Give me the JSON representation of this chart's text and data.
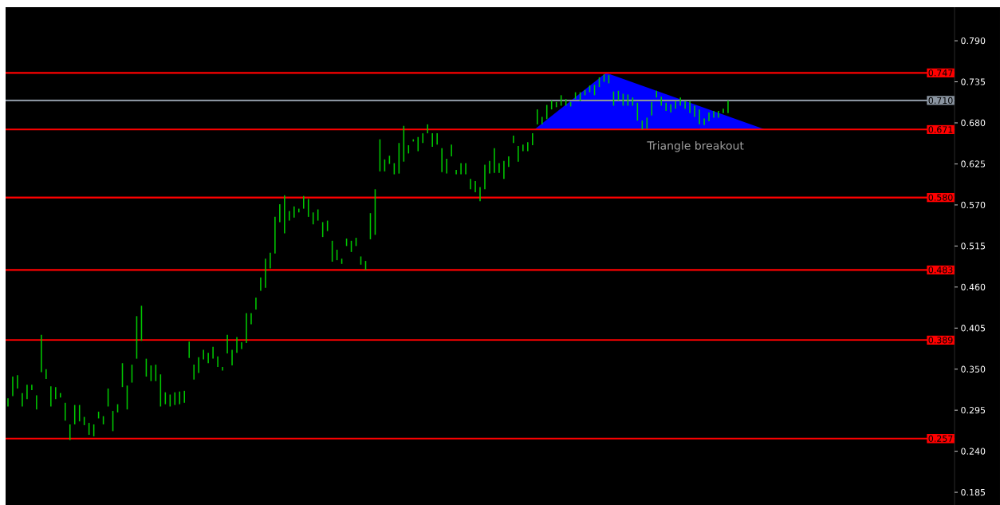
{
  "chart_data": {
    "type": "bar",
    "tick_labels": "y",
    "color": "#00c800",
    "ylim": [
      0.168,
      0.835
    ],
    "yticks": [
      0.185,
      {
        "value": 0.24,
        "label": "0.240"
      },
      0.295,
      {
        "value": 0.35,
        "label": "0.350"
      },
      0.405,
      {
        "value": 0.46,
        "label": "0.460"
      },
      0.515,
      {
        "value": 0.57,
        "label": "0.570"
      },
      0.625,
      {
        "value": 0.68,
        "label": "0.680"
      },
      0.735,
      {
        "value": 0.79,
        "label": "0.790"
      }
    ],
    "categories": [
      null,
      null,
      null,
      null,
      null,
      null,
      null,
      null,
      null,
      null,
      null,
      null,
      null,
      null,
      null,
      null,
      null,
      null,
      null,
      null,
      null,
      null,
      null,
      null,
      null,
      null,
      null,
      null,
      null,
      null,
      null,
      null,
      null,
      null,
      null,
      null,
      null,
      null,
      null,
      null,
      null,
      null,
      null,
      null,
      null,
      null,
      null,
      null,
      null,
      null,
      null,
      null,
      null,
      null,
      null,
      null,
      null,
      null,
      null,
      null,
      null,
      null,
      null,
      null,
      null,
      null,
      null,
      null,
      null,
      null,
      null,
      null,
      null,
      null,
      null,
      null,
      null,
      null,
      null,
      null,
      null,
      null,
      null,
      null,
      null,
      null,
      null,
      null,
      null,
      null,
      null,
      null,
      null,
      null,
      null,
      null,
      null,
      null,
      null,
      null,
      null,
      null,
      null,
      null,
      null,
      null,
      null,
      null,
      null,
      null,
      null,
      null,
      null,
      null,
      null,
      null,
      null,
      null,
      null,
      null,
      null,
      null,
      null,
      null,
      null,
      null,
      null,
      null,
      null,
      null,
      null,
      null,
      null,
      null,
      null,
      null,
      null,
      null,
      null,
      null,
      null,
      null,
      null,
      null,
      null,
      null,
      null,
      null,
      null,
      null,
      null,
      null,
      null,
      null,
      null,
      null,
      null,
      null,
      null,
      null,
      null,
      null,
      null,
      null,
      null,
      null,
      null,
      null,
      null,
      null,
      null,
      null,
      null,
      null,
      null,
      null,
      null,
      null,
      null,
      null,
      null,
      null,
      null,
      null,
      null,
      null,
      null,
      null,
      null,
      null,
      null,
      null,
      null,
      null,
      null,
      null,
      null,
      null,
      null
    ],
    "base": [
      0.3,
      0.314,
      0.324,
      0.3,
      0.31,
      0.322,
      0.296,
      0.346,
      0.337,
      0.3,
      0.31,
      0.312,
      0.281,
      0.255,
      0.276,
      0.28,
      0.275,
      0.262,
      0.26,
      0.284,
      0.276,
      0.3,
      0.267,
      0.292,
      0.326,
      0.296,
      0.332,
      0.364,
      0.388,
      0.34,
      0.334,
      0.334,
      0.3,
      0.303,
      0.3,
      0.302,
      0.303,
      0.305,
      0.365,
      0.336,
      0.345,
      0.363,
      0.358,
      0.364,
      0.353,
      0.348,
      0.371,
      0.355,
      0.372,
      0.377,
      0.385,
      0.41,
      0.43,
      0.455,
      0.459,
      0.485,
      0.505,
      0.547,
      0.532,
      0.549,
      0.553,
      0.56,
      0.565,
      0.554,
      0.544,
      0.549,
      0.527,
      0.535,
      0.494,
      0.496,
      0.491,
      0.515,
      0.507,
      0.515,
      0.49,
      0.483,
      0.524,
      0.53,
      0.615,
      0.615,
      0.625,
      0.611,
      0.612,
      0.628,
      0.639,
      0.655,
      0.642,
      0.653,
      0.666,
      0.648,
      0.651,
      0.614,
      0.612,
      0.635,
      0.611,
      0.611,
      0.611,
      0.591,
      0.587,
      0.575,
      0.591,
      0.612,
      0.613,
      0.613,
      0.605,
      0.621,
      0.653,
      0.628,
      0.642,
      0.642,
      0.65,
      0.678,
      0.678,
      0.685,
      0.698,
      0.701,
      0.703,
      0.703,
      0.702,
      0.712,
      0.709,
      0.717,
      0.721,
      0.717,
      0.728,
      0.735,
      0.733,
      0.703,
      0.71,
      0.703,
      0.703,
      0.703,
      0.683,
      0.671,
      0.672,
      0.69,
      0.714,
      0.703,
      0.696,
      0.694,
      0.699,
      0.703,
      0.699,
      0.693,
      0.688,
      0.678,
      0.677,
      0.682,
      0.687,
      0.687,
      0.693,
      0.693,
      null,
      null,
      null,
      null,
      null,
      null,
      null,
      null,
      null,
      null,
      null,
      null,
      null,
      null,
      null,
      null,
      null,
      null,
      null,
      null,
      null,
      null,
      null,
      null,
      null,
      null,
      null,
      null,
      null,
      null,
      null,
      null,
      null,
      null,
      null,
      null,
      null,
      null,
      null,
      null,
      null,
      null,
      null,
      null,
      null,
      null,
      null
    ],
    "values": [
      0.011,
      0.026,
      0.018,
      0.018,
      0.019,
      0.007,
      0.019,
      0.05,
      0.013,
      0.027,
      0.016,
      0.006,
      0.024,
      0.021,
      0.026,
      0.022,
      0.011,
      0.016,
      0.016,
      0.009,
      0.011,
      0.024,
      0.027,
      0.011,
      0.032,
      0.032,
      0.024,
      0.057,
      0.047,
      0.024,
      0.021,
      0.022,
      0.043,
      0.016,
      0.016,
      0.017,
      0.017,
      0.016,
      0.022,
      0.02,
      0.021,
      0.013,
      0.014,
      0.016,
      0.014,
      0.005,
      0.025,
      0.021,
      0.021,
      0.009,
      0.04,
      0.015,
      0.016,
      0.018,
      0.039,
      0.021,
      0.049,
      0.024,
      0.051,
      0.013,
      0.015,
      0.005,
      0.017,
      0.024,
      0.016,
      0.015,
      0.02,
      0.014,
      0.028,
      0.014,
      0.007,
      0.01,
      0.015,
      0.011,
      0.011,
      0.012,
      0.035,
      0.061,
      0.043,
      0.016,
      0.011,
      0.015,
      0.041,
      0.048,
      0.011,
      0.003,
      0.019,
      0.013,
      0.012,
      0.018,
      0.015,
      0.032,
      0.02,
      0.016,
      0.006,
      0.015,
      0.015,
      0.014,
      0.015,
      0.019,
      0.033,
      0.017,
      0.033,
      0.013,
      0.024,
      0.014,
      0.01,
      0.021,
      0.009,
      0.012,
      0.016,
      0.02,
      0.01,
      0.019,
      0.012,
      0.007,
      0.014,
      0.009,
      0.006,
      0.009,
      0.012,
      0.007,
      0.009,
      0.014,
      0.013,
      0.01,
      0.011,
      0.019,
      0.013,
      0.016,
      0.015,
      0.011,
      0.024,
      0.012,
      0.015,
      0.018,
      0.009,
      0.012,
      0.011,
      0.011,
      0.01,
      0.011,
      0.01,
      0.016,
      0.015,
      0.02,
      0.009,
      0.012,
      0.009,
      0.009,
      0.006,
      0.017,
      null,
      null,
      null,
      null,
      null,
      null,
      null,
      null,
      null,
      null,
      null,
      null,
      null,
      null,
      null,
      null,
      null,
      null,
      null,
      null,
      null,
      null,
      null,
      null,
      null,
      null,
      null,
      null,
      null,
      null,
      null,
      null,
      null,
      null,
      null,
      null,
      null,
      null,
      null,
      null,
      null,
      null,
      null,
      null,
      null,
      null,
      null
    ],
    "ref_lines": [
      {
        "axis": "y",
        "value": 0.747,
        "label": "0.747",
        "color": "#ff0000"
      },
      {
        "axis": "y",
        "value": 0.71,
        "label": "0.710",
        "color": "#8a94a0"
      },
      {
        "axis": "y",
        "value": 0.671,
        "label": "0.671",
        "color": "#ff0000"
      },
      {
        "axis": "y",
        "value": 0.58,
        "label": "0.580",
        "color": "#ff0000"
      },
      {
        "axis": "y",
        "value": 0.483,
        "label": "0.483",
        "color": "#ff0000"
      },
      {
        "axis": "y",
        "value": 0.389,
        "label": "0.389",
        "color": "#ff0000"
      },
      {
        "axis": "y",
        "value": 0.257,
        "label": "0.257",
        "color": "#ff0000"
      }
    ],
    "annotations": [
      "Triangle breakout"
    ]
  }
}
